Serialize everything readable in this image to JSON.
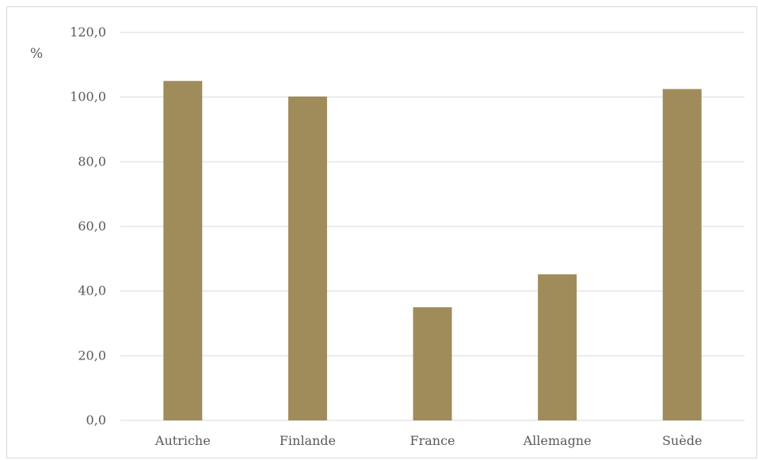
{
  "chart_data": {
    "type": "bar",
    "unit_label": "%",
    "categories": [
      "Autriche",
      "Finlande",
      "France",
      "Allemagne",
      "Suède"
    ],
    "values": [
      105.0,
      100.2,
      35.0,
      45.2,
      102.5
    ],
    "value_format": "comma-one-decimal",
    "ylim": [
      0,
      120
    ],
    "yticks": [
      "0,0",
      "20,0",
      "40,0",
      "60,0",
      "80,0",
      "100,0",
      "120,0"
    ],
    "grid": true,
    "legend": "none",
    "colors": {
      "bar": "#a08c5a",
      "grid": "#d9d9d9",
      "text": "#595959"
    }
  }
}
